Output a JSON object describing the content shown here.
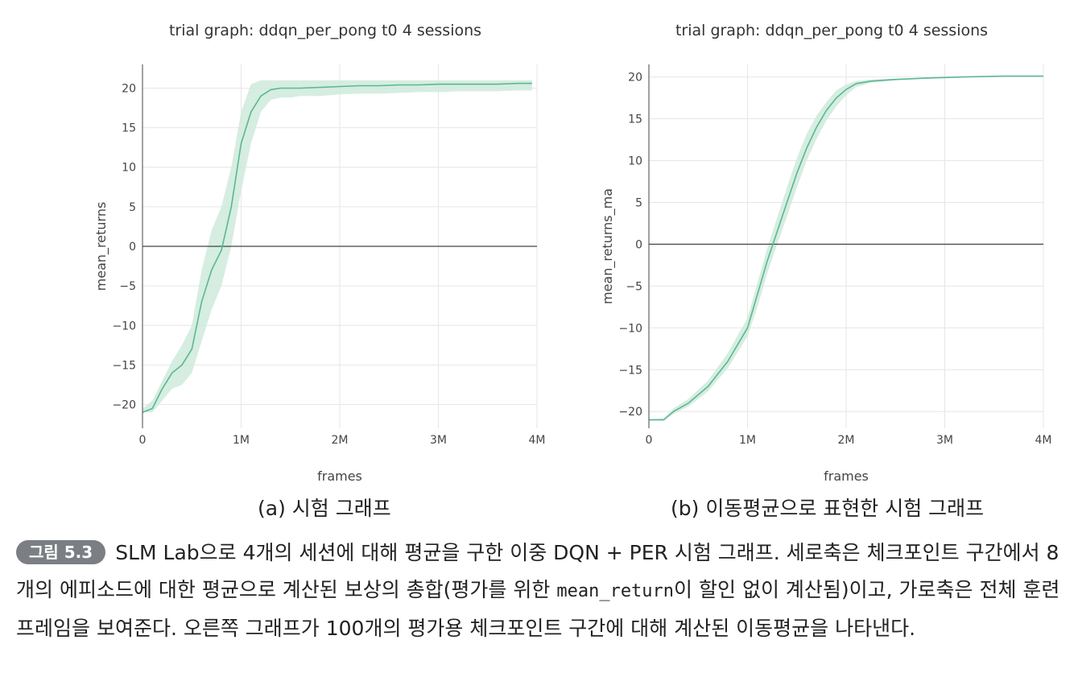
{
  "chart_data": [
    {
      "type": "line",
      "title": "trial graph: ddqn_per_pong t0 4 sessions",
      "xlabel": "frames",
      "ylabel": "mean_returns",
      "xlim": [
        0,
        4000000
      ],
      "ylim": [
        -23,
        23
      ],
      "x_ticks": [
        0,
        1000000,
        2000000,
        3000000,
        4000000
      ],
      "x_tick_labels": [
        "0",
        "1M",
        "2M",
        "3M",
        "4M"
      ],
      "y_ticks": [
        -20,
        -15,
        -10,
        -5,
        0,
        5,
        10,
        15,
        20
      ],
      "y_tick_labels": [
        "−20",
        "−15",
        "−10",
        "−5",
        "0",
        "5",
        "10",
        "15",
        "20"
      ],
      "grid": true,
      "color": "#5ab890",
      "band_color": "#cfeadc",
      "x": [
        0,
        100000,
        200000,
        300000,
        400000,
        500000,
        600000,
        700000,
        800000,
        900000,
        1000000,
        1100000,
        1200000,
        1300000,
        1400000,
        1500000,
        1600000,
        1800000,
        2000000,
        2200000,
        2400000,
        2600000,
        2800000,
        3000000,
        3200000,
        3400000,
        3600000,
        3800000,
        3950000
      ],
      "y": [
        -21,
        -20.5,
        -18,
        -16,
        -15,
        -13,
        -7,
        -3,
        -0.5,
        5,
        13,
        17,
        19,
        19.8,
        20,
        20,
        20,
        20.1,
        20.2,
        20.3,
        20.3,
        20.4,
        20.4,
        20.5,
        20.5,
        20.5,
        20.5,
        20.6,
        20.6
      ],
      "band_lower": [
        -21,
        -21,
        -19.5,
        -18,
        -17.5,
        -16,
        -12,
        -8,
        -5,
        0,
        7,
        13,
        17,
        18.5,
        18.8,
        18.8,
        19,
        19,
        19.2,
        19.3,
        19.3,
        19.4,
        19.5,
        19.5,
        19.6,
        19.6,
        19.6,
        19.7,
        19.7
      ],
      "band_upper": [
        -20.5,
        -19.5,
        -17,
        -14.5,
        -12.5,
        -10,
        -3,
        2,
        5,
        10,
        17,
        20.5,
        21,
        21,
        21,
        21,
        21,
        21,
        21,
        21,
        21,
        21,
        21,
        21,
        21,
        21,
        21,
        21,
        21
      ]
    },
    {
      "type": "line",
      "title": "trial graph: ddqn_per_pong t0 4 sessions",
      "xlabel": "frames",
      "ylabel": "mean_returns_ma",
      "xlim": [
        0,
        4000000
      ],
      "ylim": [
        -22,
        21.5
      ],
      "x_ticks": [
        0,
        1000000,
        2000000,
        3000000,
        4000000
      ],
      "x_tick_labels": [
        "0",
        "1M",
        "2M",
        "3M",
        "4M"
      ],
      "y_ticks": [
        -20,
        -15,
        -10,
        -5,
        0,
        5,
        10,
        15,
        20
      ],
      "y_tick_labels": [
        "−20",
        "−15",
        "−10",
        "−5",
        "0",
        "5",
        "10",
        "15",
        "20"
      ],
      "grid": true,
      "color": "#5ab890",
      "band_color": "#cfeadc",
      "x": [
        0,
        150000,
        250000,
        400000,
        600000,
        800000,
        1000000,
        1100000,
        1200000,
        1300000,
        1400000,
        1500000,
        1600000,
        1700000,
        1800000,
        1900000,
        2000000,
        2100000,
        2250000,
        2500000,
        2800000,
        3200000,
        3600000,
        4000000
      ],
      "y": [
        -21,
        -21,
        -20,
        -19,
        -17,
        -14,
        -10,
        -6,
        -2,
        1.5,
        5,
        8.5,
        11.5,
        14,
        16,
        17.5,
        18.5,
        19.2,
        19.5,
        19.7,
        19.85,
        20,
        20.1,
        20.1
      ],
      "band_lower": [
        -21,
        -21,
        -20.3,
        -19.4,
        -17.6,
        -14.8,
        -11,
        -7.5,
        -3.5,
        0,
        3.3,
        6.8,
        10,
        12.6,
        14.8,
        16.5,
        17.8,
        18.8,
        19.3,
        19.6,
        19.8,
        19.95,
        20.05,
        20.05
      ],
      "band_upper": [
        -20.9,
        -20.8,
        -19.6,
        -18.5,
        -16.3,
        -13,
        -8.8,
        -4.6,
        -0.5,
        3.2,
        6.8,
        10.3,
        13.2,
        15.4,
        17,
        18.4,
        19.1,
        19.5,
        19.7,
        19.8,
        19.9,
        20.05,
        20.15,
        20.15
      ]
    }
  ],
  "captions": {
    "a": "(a) 시험 그래프",
    "b": "(b) 이동평균으로 표현한 시험 그래프"
  },
  "figure_caption": {
    "badge": "그림 5.3",
    "text_1": "SLM Lab으로 4개의 세션에 대해 평균을 구한 이중 DQN + PER 시험 그래프. 세로축은 체크포인트 구간에서 8개의 에피소드에 대한 평균으로 계산된 보상의 총합(평가를 위한 ",
    "code": "mean_return",
    "text_2": "이 할인 없이 계산됨)이고, 가로축은 전체 훈련 프레임을 보여준다. 오른쪽 그래프가 100개의 평가용 체크포인트 구간에 대해 계산된 이동평균을 나타낸다."
  }
}
